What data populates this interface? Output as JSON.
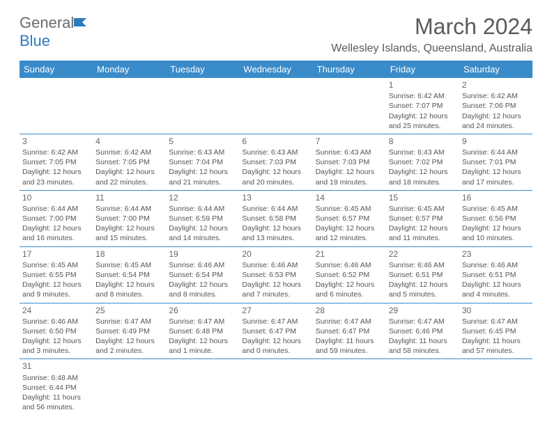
{
  "logo": {
    "text_a": "General",
    "text_b": "Blue"
  },
  "title": "March 2024",
  "location": "Wellesley Islands, Queensland, Australia",
  "header_bg": "#3a8bc9",
  "columns": [
    "Sunday",
    "Monday",
    "Tuesday",
    "Wednesday",
    "Thursday",
    "Friday",
    "Saturday"
  ],
  "days": [
    {
      "n": "1",
      "sr": "Sunrise: 6:42 AM",
      "ss": "Sunset: 7:07 PM",
      "d1": "Daylight: 12 hours",
      "d2": "and 25 minutes."
    },
    {
      "n": "2",
      "sr": "Sunrise: 6:42 AM",
      "ss": "Sunset: 7:06 PM",
      "d1": "Daylight: 12 hours",
      "d2": "and 24 minutes."
    },
    {
      "n": "3",
      "sr": "Sunrise: 6:42 AM",
      "ss": "Sunset: 7:05 PM",
      "d1": "Daylight: 12 hours",
      "d2": "and 23 minutes."
    },
    {
      "n": "4",
      "sr": "Sunrise: 6:42 AM",
      "ss": "Sunset: 7:05 PM",
      "d1": "Daylight: 12 hours",
      "d2": "and 22 minutes."
    },
    {
      "n": "5",
      "sr": "Sunrise: 6:43 AM",
      "ss": "Sunset: 7:04 PM",
      "d1": "Daylight: 12 hours",
      "d2": "and 21 minutes."
    },
    {
      "n": "6",
      "sr": "Sunrise: 6:43 AM",
      "ss": "Sunset: 7:03 PM",
      "d1": "Daylight: 12 hours",
      "d2": "and 20 minutes."
    },
    {
      "n": "7",
      "sr": "Sunrise: 6:43 AM",
      "ss": "Sunset: 7:03 PM",
      "d1": "Daylight: 12 hours",
      "d2": "and 19 minutes."
    },
    {
      "n": "8",
      "sr": "Sunrise: 6:43 AM",
      "ss": "Sunset: 7:02 PM",
      "d1": "Daylight: 12 hours",
      "d2": "and 18 minutes."
    },
    {
      "n": "9",
      "sr": "Sunrise: 6:44 AM",
      "ss": "Sunset: 7:01 PM",
      "d1": "Daylight: 12 hours",
      "d2": "and 17 minutes."
    },
    {
      "n": "10",
      "sr": "Sunrise: 6:44 AM",
      "ss": "Sunset: 7:00 PM",
      "d1": "Daylight: 12 hours",
      "d2": "and 16 minutes."
    },
    {
      "n": "11",
      "sr": "Sunrise: 6:44 AM",
      "ss": "Sunset: 7:00 PM",
      "d1": "Daylight: 12 hours",
      "d2": "and 15 minutes."
    },
    {
      "n": "12",
      "sr": "Sunrise: 6:44 AM",
      "ss": "Sunset: 6:59 PM",
      "d1": "Daylight: 12 hours",
      "d2": "and 14 minutes."
    },
    {
      "n": "13",
      "sr": "Sunrise: 6:44 AM",
      "ss": "Sunset: 6:58 PM",
      "d1": "Daylight: 12 hours",
      "d2": "and 13 minutes."
    },
    {
      "n": "14",
      "sr": "Sunrise: 6:45 AM",
      "ss": "Sunset: 6:57 PM",
      "d1": "Daylight: 12 hours",
      "d2": "and 12 minutes."
    },
    {
      "n": "15",
      "sr": "Sunrise: 6:45 AM",
      "ss": "Sunset: 6:57 PM",
      "d1": "Daylight: 12 hours",
      "d2": "and 11 minutes."
    },
    {
      "n": "16",
      "sr": "Sunrise: 6:45 AM",
      "ss": "Sunset: 6:56 PM",
      "d1": "Daylight: 12 hours",
      "d2": "and 10 minutes."
    },
    {
      "n": "17",
      "sr": "Sunrise: 6:45 AM",
      "ss": "Sunset: 6:55 PM",
      "d1": "Daylight: 12 hours",
      "d2": "and 9 minutes."
    },
    {
      "n": "18",
      "sr": "Sunrise: 6:45 AM",
      "ss": "Sunset: 6:54 PM",
      "d1": "Daylight: 12 hours",
      "d2": "and 8 minutes."
    },
    {
      "n": "19",
      "sr": "Sunrise: 6:46 AM",
      "ss": "Sunset: 6:54 PM",
      "d1": "Daylight: 12 hours",
      "d2": "and 8 minutes."
    },
    {
      "n": "20",
      "sr": "Sunrise: 6:46 AM",
      "ss": "Sunset: 6:53 PM",
      "d1": "Daylight: 12 hours",
      "d2": "and 7 minutes."
    },
    {
      "n": "21",
      "sr": "Sunrise: 6:46 AM",
      "ss": "Sunset: 6:52 PM",
      "d1": "Daylight: 12 hours",
      "d2": "and 6 minutes."
    },
    {
      "n": "22",
      "sr": "Sunrise: 6:46 AM",
      "ss": "Sunset: 6:51 PM",
      "d1": "Daylight: 12 hours",
      "d2": "and 5 minutes."
    },
    {
      "n": "23",
      "sr": "Sunrise: 6:46 AM",
      "ss": "Sunset: 6:51 PM",
      "d1": "Daylight: 12 hours",
      "d2": "and 4 minutes."
    },
    {
      "n": "24",
      "sr": "Sunrise: 6:46 AM",
      "ss": "Sunset: 6:50 PM",
      "d1": "Daylight: 12 hours",
      "d2": "and 3 minutes."
    },
    {
      "n": "25",
      "sr": "Sunrise: 6:47 AM",
      "ss": "Sunset: 6:49 PM",
      "d1": "Daylight: 12 hours",
      "d2": "and 2 minutes."
    },
    {
      "n": "26",
      "sr": "Sunrise: 6:47 AM",
      "ss": "Sunset: 6:48 PM",
      "d1": "Daylight: 12 hours",
      "d2": "and 1 minute."
    },
    {
      "n": "27",
      "sr": "Sunrise: 6:47 AM",
      "ss": "Sunset: 6:47 PM",
      "d1": "Daylight: 12 hours",
      "d2": "and 0 minutes."
    },
    {
      "n": "28",
      "sr": "Sunrise: 6:47 AM",
      "ss": "Sunset: 6:47 PM",
      "d1": "Daylight: 11 hours",
      "d2": "and 59 minutes."
    },
    {
      "n": "29",
      "sr": "Sunrise: 6:47 AM",
      "ss": "Sunset: 6:46 PM",
      "d1": "Daylight: 11 hours",
      "d2": "and 58 minutes."
    },
    {
      "n": "30",
      "sr": "Sunrise: 6:47 AM",
      "ss": "Sunset: 6:45 PM",
      "d1": "Daylight: 11 hours",
      "d2": "and 57 minutes."
    },
    {
      "n": "31",
      "sr": "Sunrise: 6:48 AM",
      "ss": "Sunset: 6:44 PM",
      "d1": "Daylight: 11 hours",
      "d2": "and 56 minutes."
    }
  ],
  "leading_empty": 5,
  "trailing_empty": 6
}
